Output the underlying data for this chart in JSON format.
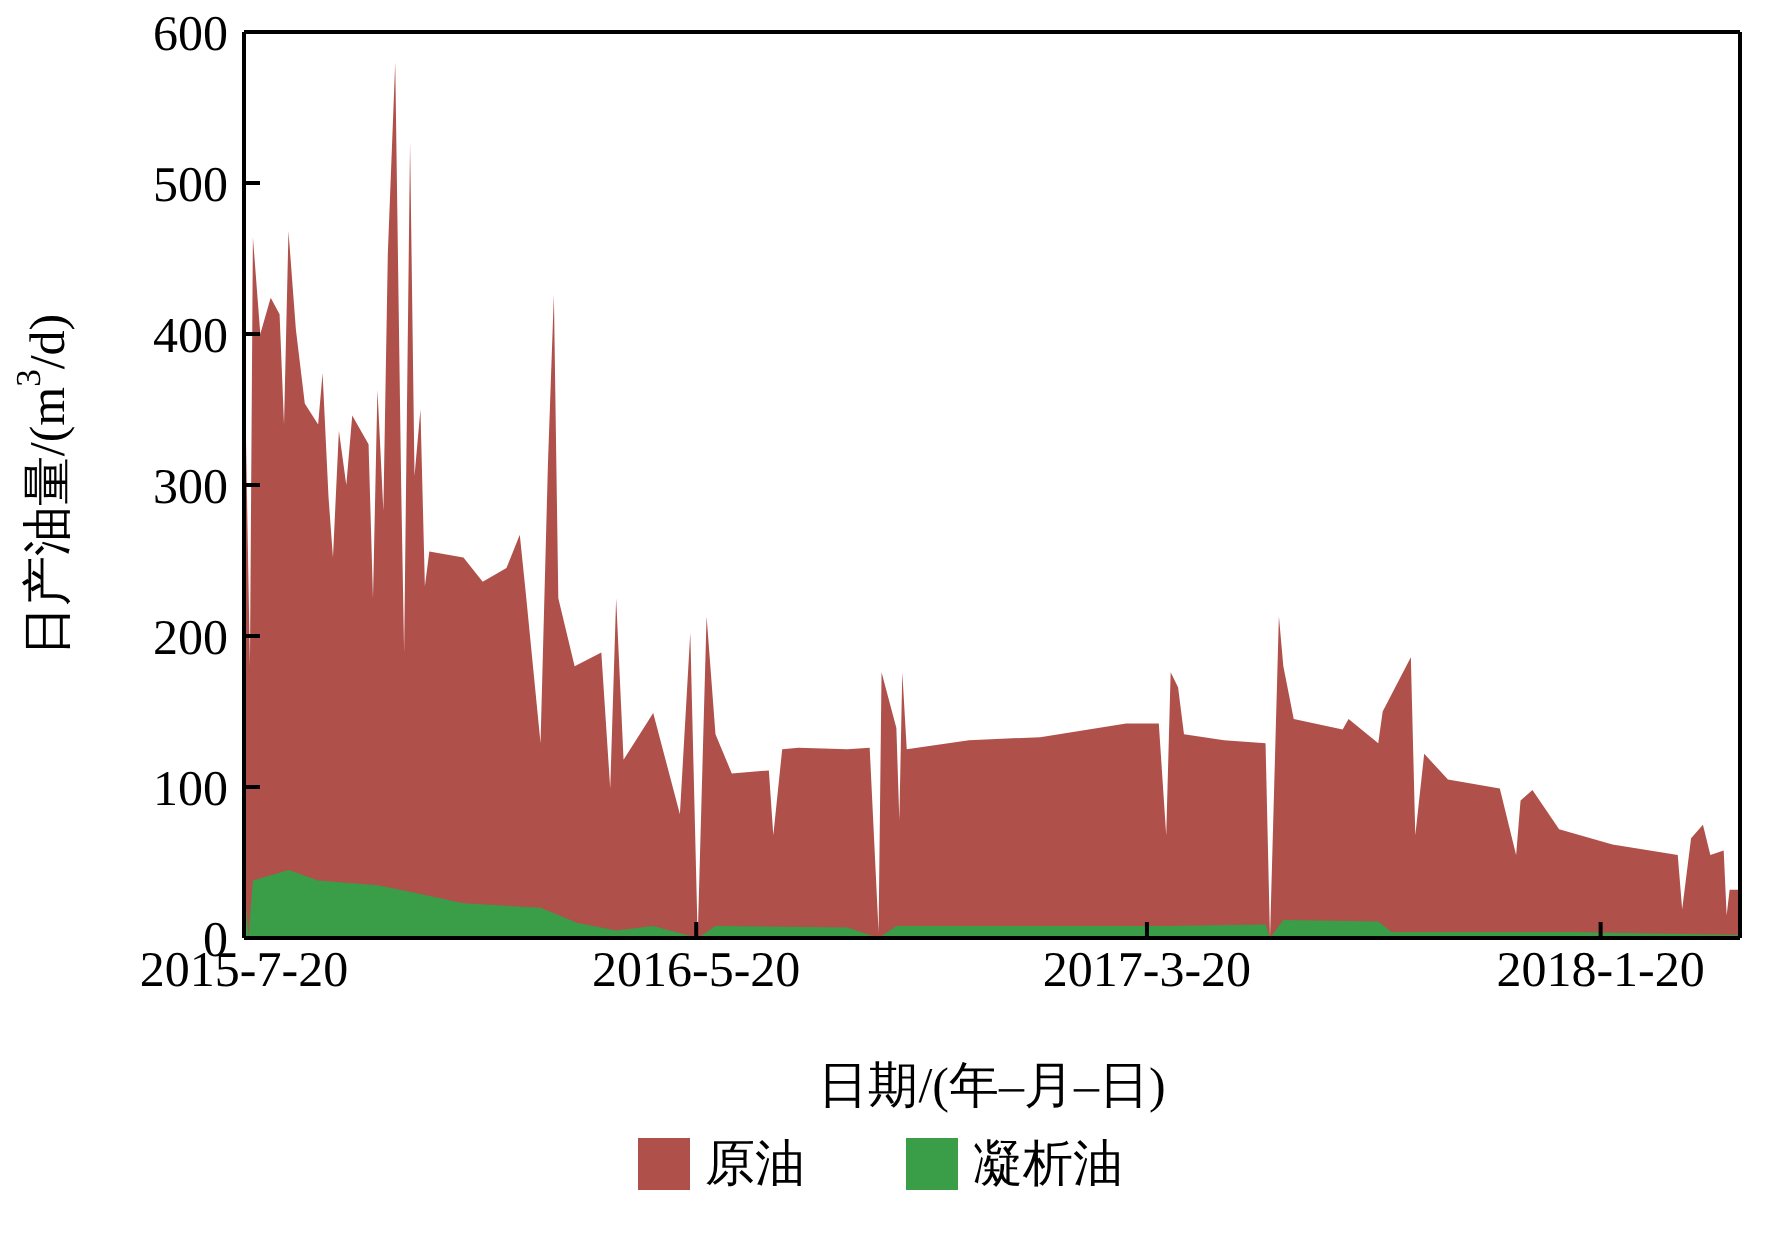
{
  "chart_data": {
    "type": "area",
    "xlabel": "日期/(年–月–日)",
    "ylabel": "日产油量/(m$^{3}$/d)",
    "xlim": [
      "2015-07-20",
      "2018-04-24"
    ],
    "xticks": [
      {
        "value": "2015-07-20",
        "label": "2015-7-20"
      },
      {
        "value": "2016-05-20",
        "label": "2016-5-20"
      },
      {
        "value": "2017-03-20",
        "label": "2017-3-20"
      },
      {
        "value": "2018-01-20",
        "label": "2018-1-20"
      }
    ],
    "ylim": [
      0,
      600
    ],
    "yticks": [
      0,
      100,
      200,
      300,
      400,
      500,
      600
    ],
    "legend": "bottom",
    "series": [
      {
        "name": "原油",
        "color": "#b0504a",
        "x": [
          "2015-07-20",
          "2015-07-24",
          "2015-07-26",
          "2015-07-31",
          "2015-08-07",
          "2015-08-13",
          "2015-08-16",
          "2015-08-19",
          "2015-08-24",
          "2015-08-30",
          "2015-09-08",
          "2015-09-11",
          "2015-09-15",
          "2015-09-18",
          "2015-09-22",
          "2015-09-27",
          "2015-10-01",
          "2015-10-12",
          "2015-10-15",
          "2015-10-18",
          "2015-10-22",
          "2015-10-25",
          "2015-10-30",
          "2015-11-03",
          "2015-11-05",
          "2015-11-09",
          "2015-11-12",
          "2015-11-16",
          "2015-11-19",
          "2015-11-22",
          "2015-12-15",
          "2015-12-28",
          "2016-01-13",
          "2016-01-22",
          "2016-01-26",
          "2016-02-05",
          "2016-02-10",
          "2016-02-14",
          "2016-02-17",
          "2016-02-28",
          "2016-03-17",
          "2016-03-23",
          "2016-03-27",
          "2016-04-01",
          "2016-04-21",
          "2016-05-09",
          "2016-05-16",
          "2016-05-21",
          "2016-05-27",
          "2016-06-02",
          "2016-06-13",
          "2016-07-08",
          "2016-07-11",
          "2016-07-17",
          "2016-07-28",
          "2016-08-30",
          "2016-09-14",
          "2016-09-20",
          "2016-09-22",
          "2016-10-02",
          "2016-10-04",
          "2016-10-06",
          "2016-10-09",
          "2016-11-20",
          "2017-01-07",
          "2017-03-06",
          "2017-03-28",
          "2017-04-02",
          "2017-04-05",
          "2017-04-10",
          "2017-04-14",
          "2017-05-11",
          "2017-06-08",
          "2017-06-11",
          "2017-06-17",
          "2017-06-20",
          "2017-06-27",
          "2017-07-30",
          "2017-08-03",
          "2017-08-23",
          "2017-08-26",
          "2017-09-14",
          "2017-09-17",
          "2017-09-23",
          "2017-10-09",
          "2017-11-13",
          "2017-11-24",
          "2017-11-27",
          "2017-12-05",
          "2017-12-23",
          "2018-01-28",
          "2018-03-13",
          "2018-03-16",
          "2018-03-22",
          "2018-03-30",
          "2018-04-04",
          "2018-04-13",
          "2018-04-15",
          "2018-04-17",
          "2018-04-24"
        ],
        "values": [
          407,
          180,
          464,
          400,
          424,
          413,
          340,
          468,
          403,
          354,
          340,
          374,
          292,
          252,
          336,
          300,
          346,
          327,
          225,
          363,
          283,
          453,
          580,
          300,
          189,
          527,
          306,
          350,
          233,
          256,
          252,
          236,
          245,
          267,
          229,
          129,
          314,
          426,
          225,
          180,
          189,
          99,
          225,
          118,
          149,
          82,
          202,
          0,
          213,
          135,
          109,
          111,
          68,
          125,
          126,
          125,
          126,
          4,
          176,
          139,
          78,
          176,
          125,
          131,
          133,
          142,
          142,
          68,
          176,
          166,
          135,
          131,
          129,
          0,
          213,
          180,
          145,
          138,
          145,
          129,
          150,
          186,
          68,
          122,
          105,
          99,
          55,
          91,
          98,
          72,
          62,
          55,
          19,
          66,
          75,
          55,
          58,
          15,
          32,
          32
        ]
      },
      {
        "name": "凝析油",
        "color": "#3a9e48",
        "x": [
          "2015-07-20",
          "2015-07-23",
          "2015-07-26",
          "2015-08-19",
          "2015-09-08",
          "2015-10-18",
          "2015-11-12",
          "2015-12-15",
          "2016-02-05",
          "2016-03-01",
          "2016-03-27",
          "2016-04-21",
          "2016-05-21",
          "2016-06-02",
          "2016-08-30",
          "2016-09-20",
          "2016-10-02",
          "2017-04-02",
          "2017-06-08",
          "2017-06-11",
          "2017-06-20",
          "2017-08-23",
          "2017-09-01",
          "2018-01-01",
          "2018-04-24"
        ],
        "values": [
          40,
          0,
          38,
          45,
          38,
          35,
          30,
          23,
          20,
          10,
          5,
          8,
          0,
          8,
          7,
          0,
          8,
          8,
          9,
          0,
          12,
          11,
          4,
          4,
          2
        ]
      }
    ]
  }
}
